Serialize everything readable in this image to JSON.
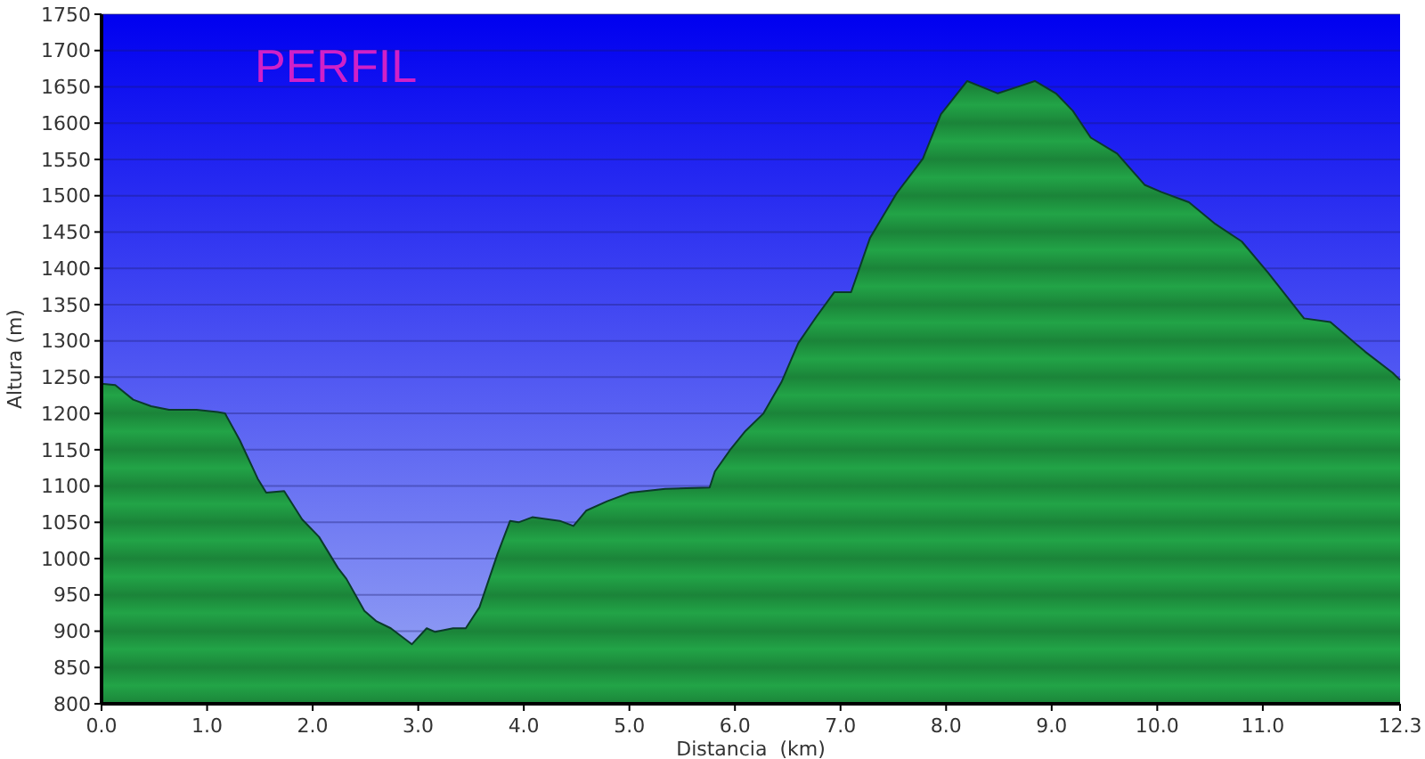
{
  "chart_data": {
    "type": "area",
    "title": "PERFIL",
    "xlabel": "Distancia  (km)",
    "ylabel": "Altura (m)",
    "xlim": [
      0,
      12.3
    ],
    "ylim": [
      800,
      1750
    ],
    "xticks": [
      {
        "value": 0,
        "label": "0.0"
      },
      {
        "value": 1,
        "label": "1.0"
      },
      {
        "value": 2,
        "label": "2.0"
      },
      {
        "value": 3,
        "label": "3.0"
      },
      {
        "value": 4,
        "label": "4.0"
      },
      {
        "value": 5,
        "label": "5.0"
      },
      {
        "value": 6,
        "label": "6.0"
      },
      {
        "value": 7,
        "label": "7.0"
      },
      {
        "value": 8,
        "label": "8.0"
      },
      {
        "value": 9,
        "label": "9.0"
      },
      {
        "value": 10,
        "label": "10.0"
      },
      {
        "value": 11,
        "label": "11.0"
      },
      12.3
    ],
    "yticks": [
      800,
      850,
      900,
      950,
      1000,
      1050,
      1100,
      1150,
      1200,
      1250,
      1300,
      1350,
      1400,
      1450,
      1500,
      1550,
      1600,
      1650,
      1700,
      1750
    ],
    "grid": "y",
    "series": [
      {
        "color": "#22a447",
        "x": [
          0,
          0.13,
          0.3,
          0.47,
          0.64,
          0.9,
          1.1,
          1.17,
          1.31,
          1.48,
          1.56,
          1.73,
          1.9,
          2.06,
          2.24,
          2.32,
          2.49,
          2.6,
          2.74,
          2.94,
          3.08,
          3.16,
          3.33,
          3.45,
          3.58,
          3.75,
          3.87,
          3.95,
          4.08,
          4.34,
          4.47,
          4.59,
          4.79,
          5.01,
          5.34,
          5.76,
          5.81,
          5.96,
          6.1,
          6.27,
          6.44,
          6.6,
          6.77,
          6.94,
          7.1,
          7.28,
          7.53,
          7.78,
          7.95,
          8.2,
          8.37,
          8.49,
          8.7,
          8.84,
          9.04,
          9.2,
          9.37,
          9.62,
          9.88,
          10.04,
          10.3,
          10.55,
          10.8,
          11.05,
          11.39,
          11.64,
          11.97,
          12.23,
          12.3
        ],
        "values": [
          1241,
          1239,
          1219,
          1210,
          1205,
          1205,
          1202,
          1200,
          1163,
          1110,
          1091,
          1093,
          1054,
          1030,
          987,
          972,
          928,
          914,
          904,
          882,
          904,
          899,
          904,
          904,
          933,
          1006,
          1052,
          1050,
          1057,
          1052,
          1045,
          1066,
          1079,
          1091,
          1096,
          1098,
          1120,
          1151,
          1176,
          1200,
          1243,
          1297,
          1333,
          1367,
          1367,
          1442,
          1503,
          1551,
          1612,
          1658,
          1648,
          1641,
          1651,
          1658,
          1641,
          1617,
          1580,
          1558,
          1515,
          1505,
          1491,
          1461,
          1437,
          1394,
          1331,
          1326,
          1285,
          1256,
          1246
        ]
      }
    ]
  }
}
